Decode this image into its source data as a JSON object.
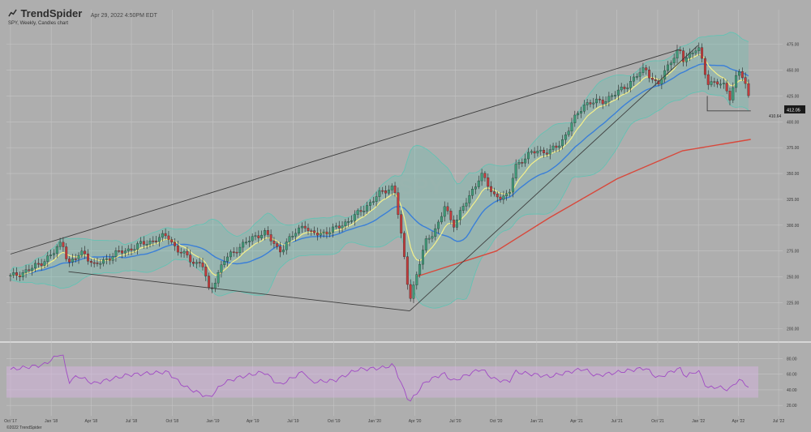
{
  "header": {
    "brand": "TrendSpider",
    "date": "Apr 29, 2022 4:50PM EDT",
    "subtitle": "SPY, Weekly, Candles chart",
    "copyright": "©2022 TrendSpider"
  },
  "chart_data": [
    {
      "type": "candlestick",
      "symbol": "SPY",
      "watermark": "SPY",
      "interval": "Weekly",
      "price_labels": {
        "last": "412.05",
        "level": "410.64"
      },
      "x": {
        "tick_labels": [
          "Oct '17",
          "Jan '18",
          "Apr '18",
          "Jul '18",
          "Oct '18",
          "Jan '19",
          "Apr '19",
          "Jul '19",
          "Oct '19",
          "Jan '20",
          "Apr '20",
          "Jul '20",
          "Oct '20",
          "Jan '21",
          "Apr '21",
          "Jul '21",
          "Oct '21",
          "Jan '22",
          "Apr '22",
          "Jul '22"
        ]
      },
      "y": {
        "range": [
          190,
          485
        ],
        "ticks": [
          200,
          225,
          250,
          275,
          300,
          325,
          350,
          375,
          400,
          425,
          450,
          475
        ]
      },
      "close_points": [
        [
          "2017-10-01",
          250
        ],
        [
          "2017-11-15",
          257
        ],
        [
          "2018-01-05",
          272
        ],
        [
          "2018-01-26",
          285
        ],
        [
          "2018-02-09",
          262
        ],
        [
          "2018-03-16",
          275
        ],
        [
          "2018-04-06",
          260
        ],
        [
          "2018-05-25",
          272
        ],
        [
          "2018-06-22",
          276
        ],
        [
          "2018-07-27",
          282
        ],
        [
          "2018-09-21",
          290
        ],
        [
          "2018-10-12",
          276
        ],
        [
          "2018-11-02",
          270
        ],
        [
          "2018-11-23",
          263
        ],
        [
          "2018-12-07",
          264
        ],
        [
          "2018-12-24",
          235
        ],
        [
          "2019-01-25",
          265
        ],
        [
          "2019-03-01",
          279
        ],
        [
          "2019-04-26",
          294
        ],
        [
          "2019-05-31",
          275
        ],
        [
          "2019-07-26",
          302
        ],
        [
          "2019-08-09",
          291
        ],
        [
          "2019-08-30",
          292
        ],
        [
          "2019-10-04",
          296
        ],
        [
          "2019-11-22",
          310
        ],
        [
          "2020-01-17",
          332
        ],
        [
          "2020-02-14",
          338
        ],
        [
          "2020-02-28",
          296
        ],
        [
          "2020-03-20",
          229
        ],
        [
          "2020-04-03",
          248
        ],
        [
          "2020-04-24",
          283
        ],
        [
          "2020-05-29",
          304
        ],
        [
          "2020-06-05",
          320
        ],
        [
          "2020-06-26",
          300
        ],
        [
          "2020-07-31",
          326
        ],
        [
          "2020-08-28",
          350
        ],
        [
          "2020-09-25",
          329
        ],
        [
          "2020-10-30",
          327
        ],
        [
          "2020-11-13",
          358
        ],
        [
          "2021-01-01",
          373
        ],
        [
          "2021-01-29",
          370
        ],
        [
          "2021-02-26",
          381
        ],
        [
          "2021-04-16",
          417
        ],
        [
          "2021-05-28",
          420
        ],
        [
          "2021-06-25",
          426
        ],
        [
          "2021-07-30",
          438
        ],
        [
          "2021-09-03",
          452
        ],
        [
          "2021-10-01",
          434
        ],
        [
          "2021-10-29",
          459
        ],
        [
          "2021-11-19",
          470
        ],
        [
          "2021-11-26",
          458
        ],
        [
          "2021-12-31",
          474
        ],
        [
          "2022-01-21",
          437
        ],
        [
          "2022-02-11",
          440
        ],
        [
          "2022-03-04",
          432
        ],
        [
          "2022-03-11",
          420
        ],
        [
          "2022-04-01",
          452
        ],
        [
          "2022-04-08",
          447
        ],
        [
          "2022-04-22",
          427
        ],
        [
          "2022-04-29",
          412
        ]
      ],
      "indicators": {
        "ema_short": {
          "color": "#f5f08a"
        },
        "sma_mid": {
          "color": "#3a7fd8"
        },
        "sma_long": {
          "color": "#d8483b",
          "points": [
            [
              "2020-04-03",
              250
            ],
            [
              "2020-10-02",
              275
            ],
            [
              "2021-01-29",
              307
            ],
            [
              "2021-07-02",
              345
            ],
            [
              "2021-11-26",
              372
            ],
            [
              "2022-04-29",
              383
            ]
          ]
        },
        "bands": {
          "color": "#5ec4b4"
        }
      },
      "trendlines": {
        "color": "#3e3e3e",
        "lines": [
          [
            [
              "2017-10-01",
              272
            ],
            [
              "2021-11-19",
              470
            ]
          ],
          [
            [
              "2018-02-09",
              255
            ],
            [
              "2020-03-20",
              217
            ]
          ],
          [
            [
              "2020-03-20",
              217
            ],
            [
              "2021-12-31",
              474
            ]
          ],
          [
            [
              "2022-01-21",
              425
            ],
            [
              "2022-01-21",
              410.64
            ],
            [
              "2022-04-29",
              410.64
            ]
          ]
        ]
      }
    },
    {
      "type": "line",
      "indicator": "RSI",
      "y": {
        "range": [
          15,
          95
        ],
        "ticks": [
          20,
          40,
          60,
          80
        ]
      },
      "band": [
        30,
        70
      ],
      "color": "#a04ac4",
      "points": [
        [
          "2017-10-01",
          66
        ],
        [
          "2017-12-15",
          72
        ],
        [
          "2018-01-26",
          88
        ],
        [
          "2018-02-09",
          50
        ],
        [
          "2018-03-02",
          58
        ],
        [
          "2018-04-06",
          48
        ],
        [
          "2018-06-22",
          59
        ],
        [
          "2018-09-21",
          63
        ],
        [
          "2018-10-12",
          52
        ],
        [
          "2018-11-02",
          43
        ],
        [
          "2018-12-24",
          30
        ],
        [
          "2019-01-25",
          49
        ],
        [
          "2019-03-01",
          56
        ],
        [
          "2019-04-26",
          63
        ],
        [
          "2019-05-31",
          46
        ],
        [
          "2019-07-26",
          64
        ],
        [
          "2019-08-09",
          50
        ],
        [
          "2019-10-04",
          52
        ],
        [
          "2019-11-22",
          66
        ],
        [
          "2020-01-17",
          68
        ],
        [
          "2020-02-14",
          72
        ],
        [
          "2020-02-28",
          50
        ],
        [
          "2020-03-20",
          24
        ],
        [
          "2020-04-24",
          50
        ],
        [
          "2020-06-05",
          61
        ],
        [
          "2020-06-26",
          51
        ],
        [
          "2020-08-28",
          67
        ],
        [
          "2020-09-25",
          54
        ],
        [
          "2020-10-30",
          50
        ],
        [
          "2020-11-13",
          63
        ],
        [
          "2021-01-29",
          57
        ],
        [
          "2021-04-16",
          67
        ],
        [
          "2021-05-14",
          58
        ],
        [
          "2021-07-30",
          65
        ],
        [
          "2021-09-03",
          68
        ],
        [
          "2021-10-01",
          55
        ],
        [
          "2021-11-19",
          68
        ],
        [
          "2021-12-03",
          57
        ],
        [
          "2021-12-31",
          65
        ],
        [
          "2022-01-21",
          42
        ],
        [
          "2022-02-11",
          44
        ],
        [
          "2022-03-11",
          40
        ],
        [
          "2022-04-01",
          53
        ],
        [
          "2022-04-22",
          46
        ],
        [
          "2022-04-29",
          38
        ]
      ]
    }
  ]
}
